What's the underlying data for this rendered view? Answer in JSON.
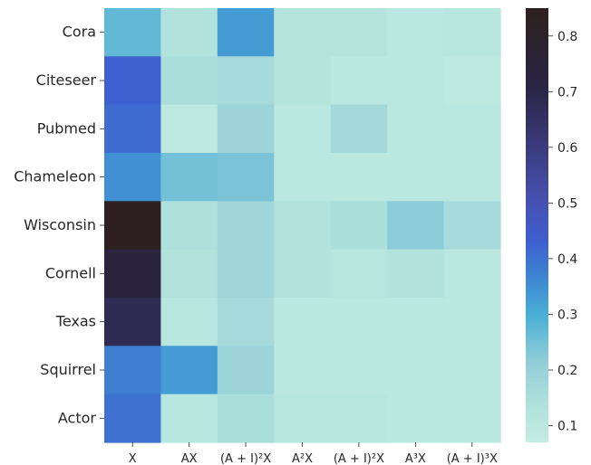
{
  "chart_data": {
    "type": "heatmap",
    "x_labels": [
      "X",
      "AX",
      "(A + I)²X",
      "A²X",
      "(A + I)²X",
      "A³X",
      "(A + I)³X"
    ],
    "y_labels": [
      "Cora",
      "Citeseer",
      "Pubmed",
      "Chameleon",
      "Wisconsin",
      "Cornell",
      "Texas",
      "Squirrel",
      "Actor"
    ],
    "values": [
      [
        0.27,
        0.13,
        0.33,
        0.12,
        0.12,
        0.1,
        0.11
      ],
      [
        0.43,
        0.15,
        0.16,
        0.12,
        0.1,
        0.1,
        0.09
      ],
      [
        0.41,
        0.09,
        0.19,
        0.1,
        0.17,
        0.1,
        0.1
      ],
      [
        0.35,
        0.25,
        0.24,
        0.1,
        0.1,
        0.1,
        0.1
      ],
      [
        0.84,
        0.14,
        0.18,
        0.13,
        0.15,
        0.22,
        0.16
      ],
      [
        0.73,
        0.13,
        0.18,
        0.13,
        0.11,
        0.13,
        0.1
      ],
      [
        0.68,
        0.11,
        0.16,
        0.1,
        0.1,
        0.1,
        0.1
      ],
      [
        0.38,
        0.33,
        0.19,
        0.1,
        0.1,
        0.1,
        0.1
      ],
      [
        0.4,
        0.11,
        0.15,
        0.11,
        0.11,
        0.1,
        0.1
      ]
    ],
    "colorbar": {
      "vmin": 0.07,
      "vmax": 0.85,
      "ticks": [
        "0.1",
        "0.2",
        "0.3",
        "0.4",
        "0.5",
        "0.6",
        "0.7",
        "0.8"
      ],
      "tick_values": [
        0.1,
        0.2,
        0.3,
        0.4,
        0.5,
        0.6,
        0.7,
        0.8
      ],
      "colormap": "icefire-like (mint → teal → blue → dark purple → near-black)"
    },
    "grid": false
  }
}
